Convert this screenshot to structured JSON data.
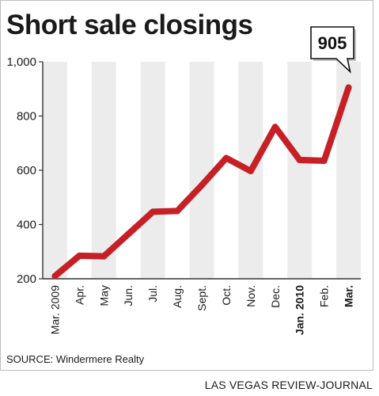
{
  "chart_data": {
    "type": "line",
    "title": "Short sale closings",
    "categories": [
      "Mar. 2009",
      "Apr.",
      "May",
      "Jun.",
      "Jul.",
      "Aug.",
      "Sept.",
      "Oct.",
      "Nov.",
      "Dec.",
      "Jan. 2010",
      "Feb.",
      "Mar."
    ],
    "bold_categories": [
      "Jan. 2010",
      "Mar."
    ],
    "values": [
      210,
      285,
      283,
      365,
      447,
      450,
      545,
      645,
      597,
      760,
      638,
      635,
      905
    ],
    "ylim": [
      200,
      1000
    ],
    "yticks": [
      200,
      400,
      600,
      800,
      1000
    ],
    "ytick_labels": [
      "200",
      "400",
      "600",
      "800",
      "1,000"
    ],
    "callout": "905",
    "line_color": "#c62026",
    "band_color": "#ececec",
    "grid": false
  },
  "source": "SOURCE: Windermere Realty",
  "credit": "LAS VEGAS REVIEW-JOURNAL"
}
